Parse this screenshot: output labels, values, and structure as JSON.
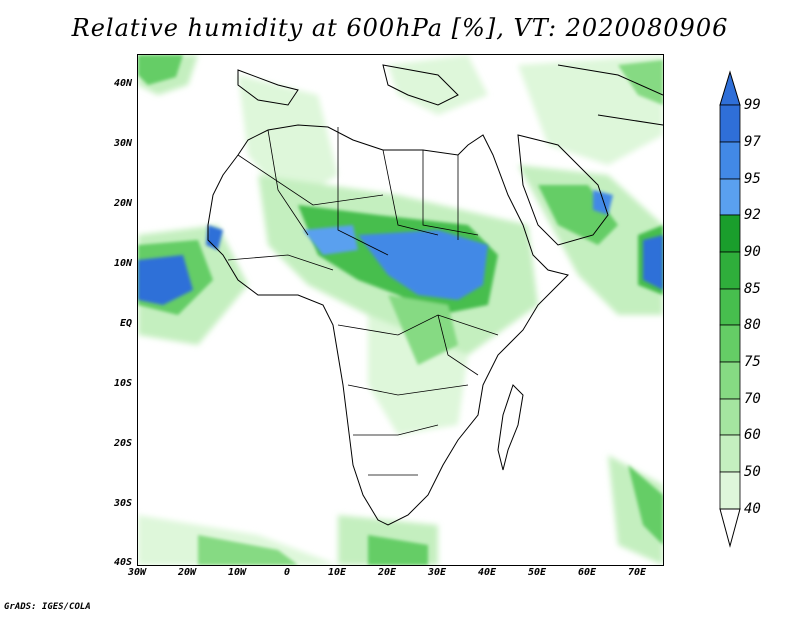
{
  "title": "Relative humidity at 600hPa [%], VT: 2020080906",
  "credit": "GrADS: IGES/COLA",
  "map": {
    "lon_range": [
      -30,
      75
    ],
    "lat_range": [
      -40,
      45
    ],
    "lat_labels": [
      "40N",
      "30N",
      "20N",
      "10N",
      "EQ",
      "10S",
      "20S",
      "30S",
      "40S"
    ],
    "lat_values": [
      40,
      30,
      20,
      10,
      0,
      -10,
      -20,
      -30,
      -40
    ],
    "lon_labels": [
      "30W",
      "20W",
      "10W",
      "0",
      "10E",
      "20E",
      "30E",
      "40E",
      "50E",
      "60E",
      "70E"
    ],
    "lon_values": [
      -30,
      -20,
      -10,
      0,
      10,
      20,
      30,
      40,
      50,
      60,
      70
    ]
  },
  "colorbar": {
    "labels": [
      "99",
      "97",
      "95",
      "92",
      "90",
      "85",
      "80",
      "75",
      "70",
      "60",
      "50",
      "40"
    ],
    "colors": [
      "#2f6fd8",
      "#4289e6",
      "#5aa0ef",
      "#1a9e2c",
      "#2fae3b",
      "#47be4e",
      "#65cd66",
      "#86da83",
      "#a5e5a0",
      "#c4efbf",
      "#def7da",
      "#f2fcef"
    ]
  }
}
